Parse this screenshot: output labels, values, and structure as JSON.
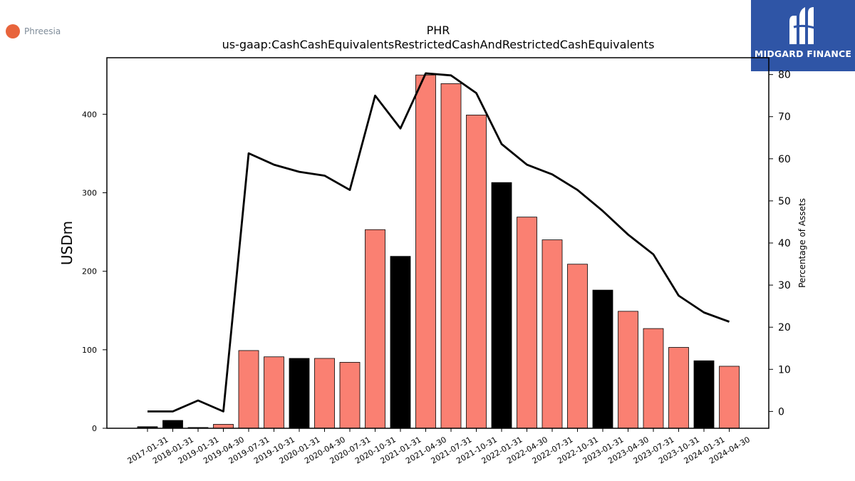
{
  "company": {
    "name": "Phreesia",
    "logo_color": "#e8643c"
  },
  "brand": {
    "name": "MIDGARD FINANCE",
    "background": "#2f55a6"
  },
  "chart_data": {
    "type": "bar",
    "title": "PHR",
    "subtitle": "us-gaap:CashCashEquivalentsRestrictedCashAndRestrictedCashEquivalents",
    "ylabel": "USDm",
    "y2label": "Percentage of Assets",
    "ylim": [
      0,
      472
    ],
    "y2lim": [
      -4,
      84
    ],
    "yticks": [
      0,
      100,
      200,
      300,
      400
    ],
    "y2ticks": [
      0,
      10,
      20,
      30,
      40,
      50,
      60,
      70,
      80
    ],
    "categories": [
      "2017-01-31",
      "2018-01-31",
      "2019-01-31",
      "2019-04-30",
      "2019-07-31",
      "2019-10-31",
      "2020-01-31",
      "2020-04-30",
      "2020-07-31",
      "2020-10-31",
      "2021-01-31",
      "2021-04-30",
      "2021-07-31",
      "2021-10-31",
      "2022-01-31",
      "2022-04-30",
      "2022-07-31",
      "2022-10-31",
      "2023-01-31",
      "2023-04-30",
      "2023-07-31",
      "2023-10-31",
      "2024-01-31",
      "2024-04-30"
    ],
    "series": [
      {
        "type": "bar",
        "values": [
          2,
          10,
          1,
          5,
          99,
          91,
          89,
          89,
          84,
          253,
          219,
          450,
          439,
          399,
          313,
          269,
          240,
          209,
          176,
          149,
          127,
          103,
          86,
          79
        ],
        "colors": [
          "#000000",
          "#000000",
          "#000000",
          "#fa8072",
          "#fa8072",
          "#fa8072",
          "#000000",
          "#fa8072",
          "#fa8072",
          "#fa8072",
          "#000000",
          "#fa8072",
          "#fa8072",
          "#fa8072",
          "#000000",
          "#fa8072",
          "#fa8072",
          "#fa8072",
          "#000000",
          "#fa8072",
          "#fa8072",
          "#fa8072",
          "#000000",
          "#fa8072"
        ]
      },
      {
        "type": "line",
        "axis": "right",
        "color": "#000000",
        "values": [
          0,
          0,
          2.6,
          0,
          61.3,
          58.6,
          56.9,
          56.0,
          52.6,
          75.0,
          67.2,
          80.3,
          79.8,
          75.6,
          63.5,
          58.6,
          56.3,
          52.6,
          47.6,
          42.0,
          37.3,
          27.5,
          23.5,
          21.3
        ]
      }
    ],
    "grid": false
  }
}
